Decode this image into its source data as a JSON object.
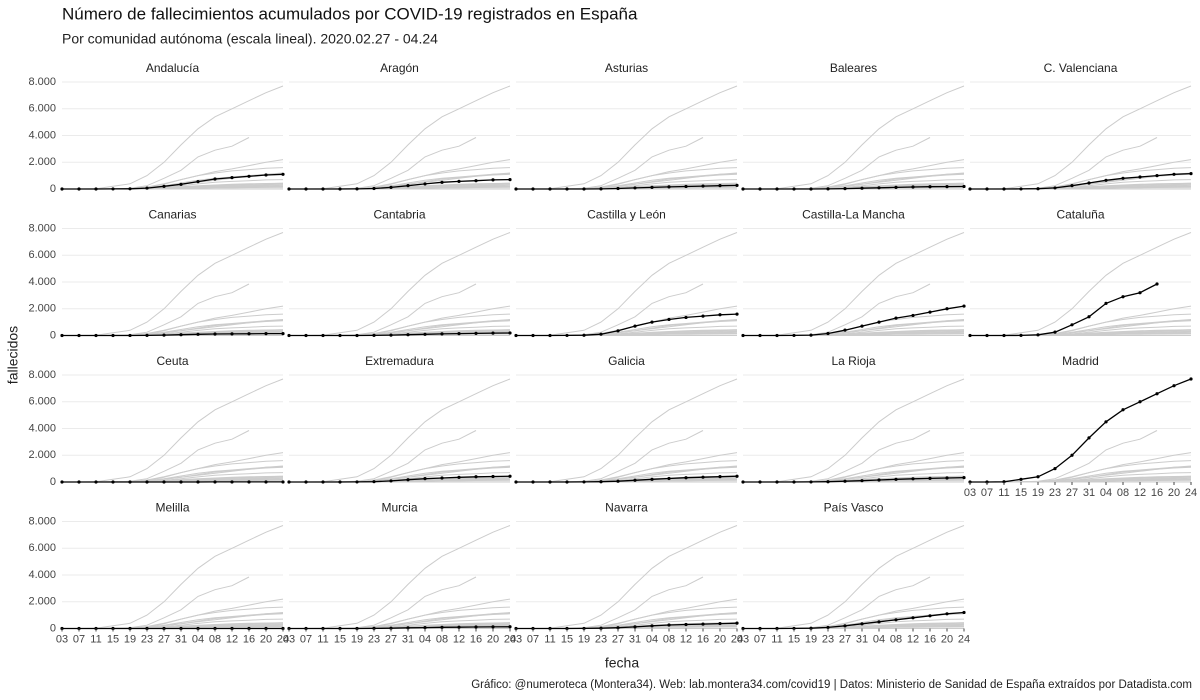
{
  "chart_data": {
    "type": "line",
    "title": "Número de fallecimientos acumulados por COVID-19 registrados en España",
    "subtitle": "Por comunidad autónoma (escala lineal). 2020.02.27 - 04.24",
    "x_label": "fecha",
    "y_label": "fallecidos",
    "caption": "Gráfico: @numeroteca (Montera34). Web: lab.montera34.com/covid19 | Datos: Ministerio de Sanidad de España extraídos por Datadista.com",
    "highlight_color": "#000000",
    "context_color": "#cccccc",
    "grid": true,
    "x": [
      5,
      9,
      13,
      17,
      21,
      25,
      29,
      33,
      37,
      41,
      45,
      49,
      53,
      57
    ],
    "xlim": [
      5,
      57
    ],
    "xticks": [
      {
        "value": 5,
        "label": "03"
      },
      {
        "value": 9,
        "label": "07"
      },
      {
        "value": 13,
        "label": "11"
      },
      {
        "value": 17,
        "label": "15"
      },
      {
        "value": 21,
        "label": "19"
      },
      {
        "value": 25,
        "label": "23"
      },
      {
        "value": 29,
        "label": "27"
      },
      {
        "value": 33,
        "label": "31"
      },
      {
        "value": 37,
        "label": "04"
      },
      {
        "value": 41,
        "label": "08"
      },
      {
        "value": 45,
        "label": "12"
      },
      {
        "value": 49,
        "label": "16"
      },
      {
        "value": 53,
        "label": "20"
      },
      {
        "value": 57,
        "label": "24"
      }
    ],
    "ylim": [
      0,
      8300
    ],
    "yticks": [
      0,
      {
        "value": 2000,
        "label": "2.000"
      },
      {
        "value": 4000,
        "label": "4.000"
      },
      {
        "value": 6000,
        "label": "6.000"
      },
      {
        "value": 8000,
        "label": "8.000"
      }
    ],
    "series": [
      {
        "name": "Andalucía",
        "values": [
          0,
          0,
          0,
          5,
          15,
          70,
          200,
          350,
          550,
          750,
          850,
          950,
          1050,
          1100
        ]
      },
      {
        "name": "Aragón",
        "values": [
          0,
          0,
          0,
          2,
          10,
          40,
          120,
          250,
          380,
          500,
          570,
          620,
          680,
          700
        ]
      },
      {
        "name": "Asturias",
        "values": [
          0,
          0,
          0,
          0,
          2,
          10,
          40,
          80,
          120,
          160,
          190,
          220,
          250,
          270
        ]
      },
      {
        "name": "Baleares",
        "values": [
          0,
          0,
          0,
          0,
          2,
          10,
          30,
          60,
          90,
          120,
          150,
          170,
          180,
          190
        ]
      },
      {
        "name": "C. Valenciana",
        "values": [
          0,
          0,
          0,
          5,
          20,
          80,
          250,
          450,
          650,
          800,
          900,
          1000,
          1100,
          1150
        ]
      },
      {
        "name": "Canarias",
        "values": [
          0,
          0,
          0,
          1,
          3,
          10,
          30,
          60,
          90,
          110,
          120,
          130,
          140,
          140
        ]
      },
      {
        "name": "Cantabria",
        "values": [
          0,
          0,
          0,
          0,
          2,
          10,
          30,
          60,
          90,
          120,
          140,
          160,
          180,
          190
        ]
      },
      {
        "name": "Castilla y León",
        "values": [
          0,
          0,
          0,
          5,
          20,
          100,
          350,
          700,
          1000,
          1200,
          1350,
          1450,
          1550,
          1600
        ]
      },
      {
        "name": "Castilla-La Mancha",
        "values": [
          0,
          0,
          0,
          5,
          30,
          150,
          400,
          700,
          1000,
          1300,
          1500,
          1750,
          2000,
          2200
        ]
      },
      {
        "name": "Cataluña",
        "values": [
          0,
          0,
          0,
          10,
          50,
          250,
          800,
          1400,
          2400,
          2900,
          3200,
          3850,
          null,
          null
        ]
      },
      {
        "name": "Ceuta",
        "values": [
          0,
          0,
          0,
          0,
          0,
          0,
          1,
          2,
          3,
          4,
          4,
          4,
          4,
          4
        ]
      },
      {
        "name": "Extremadura",
        "values": [
          0,
          0,
          0,
          0,
          5,
          25,
          80,
          170,
          250,
          300,
          350,
          390,
          410,
          430
        ]
      },
      {
        "name": "Galicia",
        "values": [
          0,
          0,
          0,
          0,
          5,
          20,
          60,
          130,
          200,
          260,
          320,
          360,
          400,
          430
        ]
      },
      {
        "name": "La Rioja",
        "values": [
          0,
          0,
          0,
          1,
          5,
          20,
          60,
          100,
          150,
          200,
          240,
          270,
          300,
          330
        ]
      },
      {
        "name": "Madrid",
        "values": [
          0,
          0,
          16,
          200,
          390,
          1000,
          2000,
          3300,
          4500,
          5400,
          6000,
          6600,
          7200,
          7700
        ]
      },
      {
        "name": "Melilla",
        "values": [
          0,
          0,
          0,
          0,
          0,
          0,
          1,
          1,
          2,
          2,
          2,
          2,
          2,
          2
        ]
      },
      {
        "name": "Murcia",
        "values": [
          0,
          0,
          0,
          0,
          2,
          8,
          25,
          50,
          70,
          90,
          100,
          110,
          120,
          130
        ]
      },
      {
        "name": "Navarra",
        "values": [
          0,
          0,
          0,
          0,
          5,
          20,
          60,
          120,
          200,
          260,
          300,
          330,
          370,
          400
        ]
      },
      {
        "name": "País Vasco",
        "values": [
          0,
          0,
          0,
          5,
          20,
          80,
          200,
          350,
          500,
          650,
          800,
          950,
          1100,
          1200
        ]
      }
    ]
  }
}
